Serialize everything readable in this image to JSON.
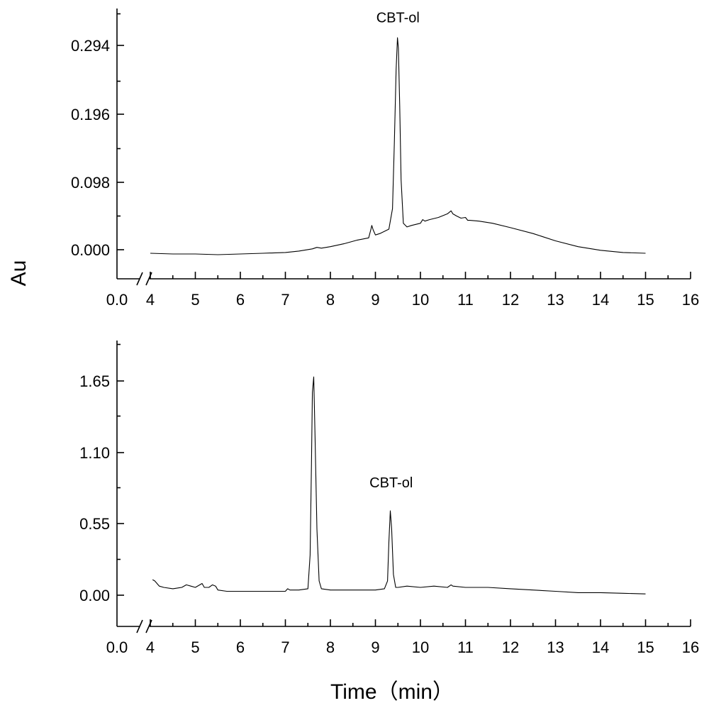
{
  "chart_data": [
    {
      "type": "line",
      "ylabel": "Au",
      "xlabel": "",
      "x_ticks": [
        "0.0",
        "4",
        "5",
        "6",
        "7",
        "8",
        "9",
        "10",
        "11",
        "12",
        "13",
        "14",
        "15",
        "16"
      ],
      "y_ticks": [
        "0.000",
        "0.098",
        "0.196",
        "0.294"
      ],
      "xlim": [
        4,
        16
      ],
      "ylim": [
        -0.036,
        0.334
      ],
      "axis_break": "between 0.0 and 4",
      "grid": false,
      "annotations": [
        {
          "text": "CBT-ol",
          "x": 9.5,
          "y": 0.315
        }
      ],
      "series": [
        {
          "x": [
            4.0,
            4.5,
            5.0,
            5.5,
            6.0,
            6.5,
            7.0,
            7.3,
            7.6,
            7.7,
            7.8,
            8.0,
            8.3,
            8.6,
            8.85,
            8.9,
            8.92,
            8.95,
            9.0,
            9.1,
            9.3,
            9.38,
            9.42,
            9.46,
            9.49,
            9.51,
            9.54,
            9.57,
            9.62,
            9.7,
            9.8,
            10.0,
            10.05,
            10.1,
            10.2,
            10.4,
            10.6,
            10.68,
            10.72,
            10.8,
            10.9,
            11.0,
            11.05,
            11.1,
            11.3,
            11.6,
            12.0,
            12.5,
            13.0,
            13.5,
            14.0,
            14.5,
            15.0
          ],
          "y": [
            -0.001,
            -0.002,
            -0.002,
            -0.003,
            -0.002,
            -0.001,
            0.0,
            0.002,
            0.005,
            0.007,
            0.006,
            0.008,
            0.012,
            0.017,
            0.02,
            0.032,
            0.037,
            0.031,
            0.024,
            0.026,
            0.032,
            0.06,
            0.15,
            0.25,
            0.294,
            0.28,
            0.2,
            0.1,
            0.04,
            0.035,
            0.037,
            0.04,
            0.045,
            0.043,
            0.045,
            0.048,
            0.053,
            0.057,
            0.053,
            0.05,
            0.047,
            0.048,
            0.044,
            0.044,
            0.043,
            0.04,
            0.034,
            0.026,
            0.016,
            0.008,
            0.003,
            0.0,
            -0.001
          ]
        }
      ]
    },
    {
      "type": "line",
      "ylabel": "",
      "xlabel": "Time（min）",
      "x_ticks": [
        "0.0",
        "4",
        "5",
        "6",
        "7",
        "8",
        "9",
        "10",
        "11",
        "12",
        "13",
        "14",
        "15",
        "16"
      ],
      "y_ticks": [
        "0.00",
        "0.55",
        "1.10",
        "1.65"
      ],
      "xlim": [
        4,
        16
      ],
      "ylim": [
        -0.25,
        1.95
      ],
      "axis_break": "between 0.0 and 4",
      "grid": false,
      "annotations": [
        {
          "text": "CBT-ol",
          "x": 9.35,
          "y": 0.82
        }
      ],
      "series": [
        {
          "x": [
            4.05,
            4.1,
            4.2,
            4.3,
            4.5,
            4.7,
            4.8,
            4.9,
            5.0,
            5.1,
            5.15,
            5.2,
            5.3,
            5.38,
            5.45,
            5.5,
            5.7,
            6.0,
            6.5,
            7.0,
            7.05,
            7.1,
            7.3,
            7.5,
            7.55,
            7.58,
            7.6,
            7.63,
            7.66,
            7.7,
            7.75,
            7.8,
            8.0,
            8.5,
            9.0,
            9.2,
            9.27,
            9.3,
            9.33,
            9.36,
            9.4,
            9.45,
            9.5,
            9.7,
            10.0,
            10.3,
            10.6,
            10.68,
            10.72,
            11.0,
            11.5,
            12.0,
            12.5,
            13.0,
            13.5,
            14.0,
            14.5,
            15.0
          ],
          "y": [
            0.11,
            0.1,
            0.06,
            0.05,
            0.04,
            0.05,
            0.07,
            0.06,
            0.05,
            0.07,
            0.08,
            0.05,
            0.05,
            0.07,
            0.06,
            0.03,
            0.02,
            0.02,
            0.02,
            0.02,
            0.04,
            0.03,
            0.03,
            0.04,
            0.3,
            1.0,
            1.55,
            1.67,
            1.2,
            0.5,
            0.1,
            0.04,
            0.03,
            0.03,
            0.03,
            0.04,
            0.1,
            0.4,
            0.64,
            0.5,
            0.15,
            0.05,
            0.05,
            0.06,
            0.05,
            0.06,
            0.05,
            0.07,
            0.06,
            0.05,
            0.05,
            0.04,
            0.03,
            0.02,
            0.01,
            0.01,
            0.005,
            0.0
          ]
        }
      ]
    }
  ]
}
